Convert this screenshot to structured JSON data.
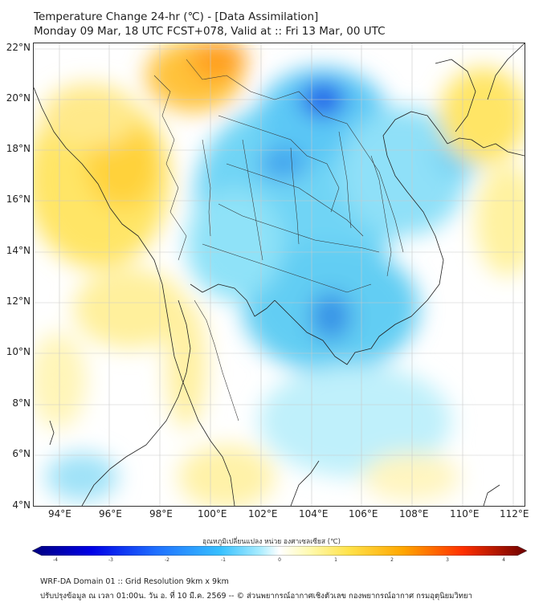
{
  "header": {
    "line1": "Temperature Change 24-hr (℃) - [Data Assimilation]",
    "line2": "Monday 09 Mar, 18 UTC FCST+078, Valid at :: Fri 13 Mar, 00 UTC"
  },
  "axes": {
    "lat_labels": [
      "22°N",
      "20°N",
      "18°N",
      "16°N",
      "14°N",
      "12°N",
      "10°N",
      "8°N",
      "6°N",
      "4°N"
    ],
    "lon_labels": [
      "94°E",
      "96°E",
      "98°E",
      "100°E",
      "102°E",
      "104°E",
      "106°E",
      "108°E",
      "110°E",
      "112°E"
    ]
  },
  "colorbar": {
    "title": "อุณหภูมิเปลี่ยนแปลง หน่วย องศาเซลเซียส (℃)",
    "ticks": [
      "-4",
      "-3",
      "-2",
      "-1",
      "0",
      "1",
      "2",
      "3",
      "4"
    ],
    "colors": [
      "#00007f",
      "#0000e6",
      "#1f5fff",
      "#36b7ff",
      "#8ce4ff",
      "#ffffff",
      "#fff9a0",
      "#ffe04a",
      "#ffa600",
      "#ff3c00",
      "#b20000",
      "#6e0000"
    ]
  },
  "footer": {
    "line1": "WRF-DA Domain 01 :: Grid Resolution 9km x 9km",
    "line2": "ปรับปรุงข้อมูล ณ เวลา 01:00น. วัน อ. ที่ 10 มี.ค. 2569 -- © ส่วนพยากรณ์อากาศเชิงตัวเลข กองพยากรณ์อากาศ กรมอุตุนิยมวิทยา"
  }
}
